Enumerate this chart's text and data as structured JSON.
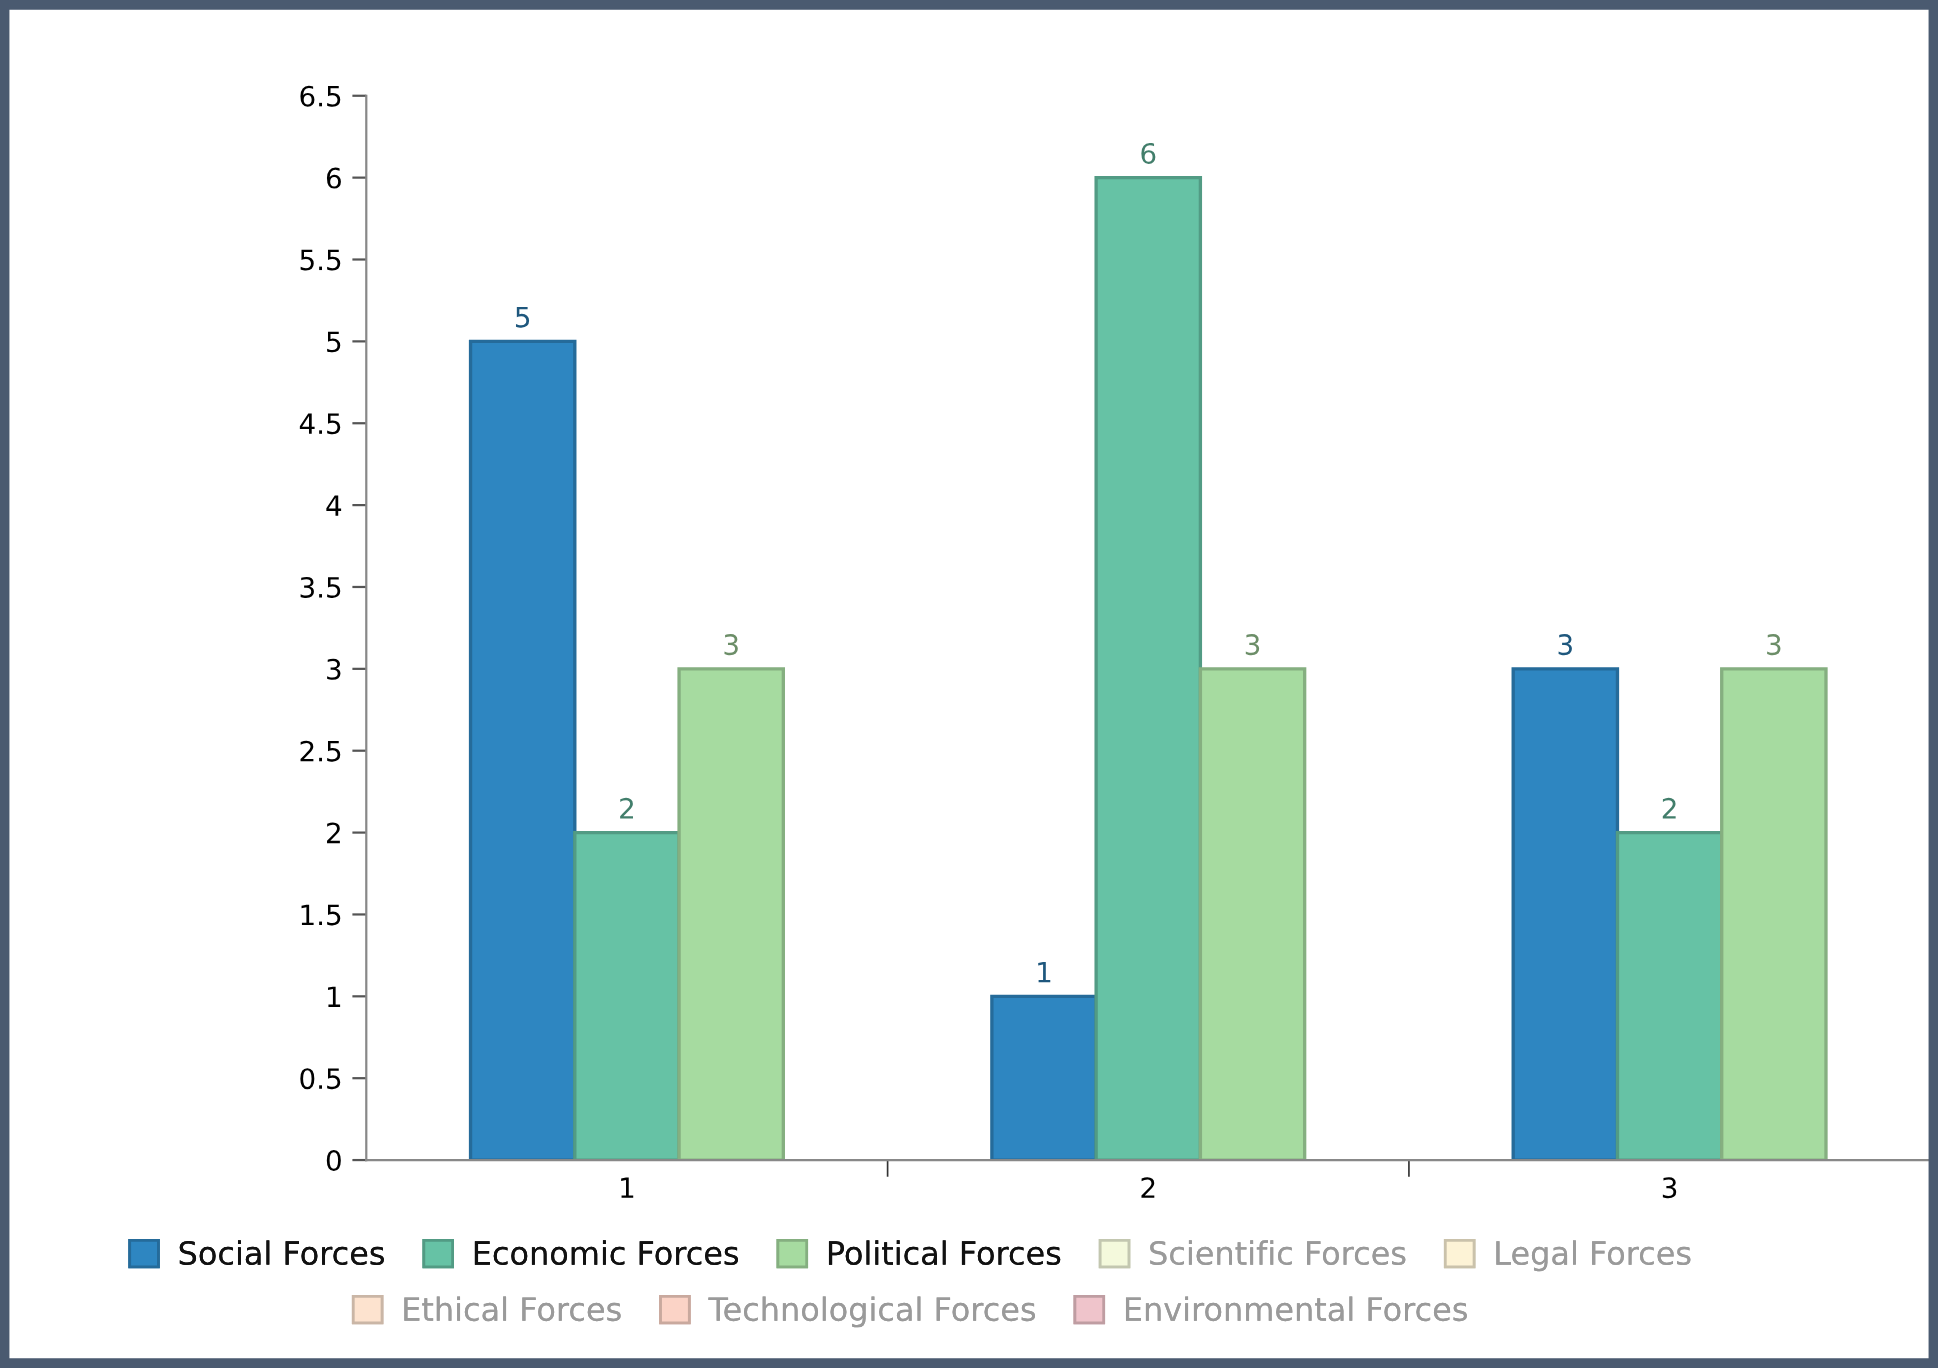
{
  "chart_data": {
    "type": "bar",
    "categories": [
      "1",
      "2",
      "3"
    ],
    "series": [
      {
        "name": "Social Forces",
        "color": "#2e86c1",
        "values": [
          5,
          1,
          3
        ]
      },
      {
        "name": "Economic Forces",
        "color": "#66c2a5",
        "values": [
          2,
          6,
          2
        ]
      },
      {
        "name": "Political Forces",
        "color": "#a6dba0",
        "values": [
          3,
          3,
          3
        ]
      },
      {
        "name": "Scientific Forces",
        "color": "#f4f9dc",
        "values": [
          null,
          null,
          null
        ]
      },
      {
        "name": "Legal Forces",
        "color": "#fdf3d6",
        "values": [
          null,
          null,
          null
        ]
      },
      {
        "name": "Ethical Forces",
        "color": "#fde3cf",
        "values": [
          null,
          null,
          null
        ]
      },
      {
        "name": "Technological Forces",
        "color": "#fbd3c6",
        "values": [
          null,
          null,
          null
        ]
      },
      {
        "name": "Environmental Forces",
        "color": "#efc4cb",
        "values": [
          null,
          null,
          null
        ]
      }
    ],
    "ylim": [
      0,
      6.5
    ],
    "yticks": [
      0,
      0.5,
      1,
      1.5,
      2,
      2.5,
      3,
      3.5,
      4,
      4.5,
      5,
      5.5,
      6,
      6.5
    ],
    "data_labels": true,
    "grid": false,
    "legend": "bottom"
  }
}
